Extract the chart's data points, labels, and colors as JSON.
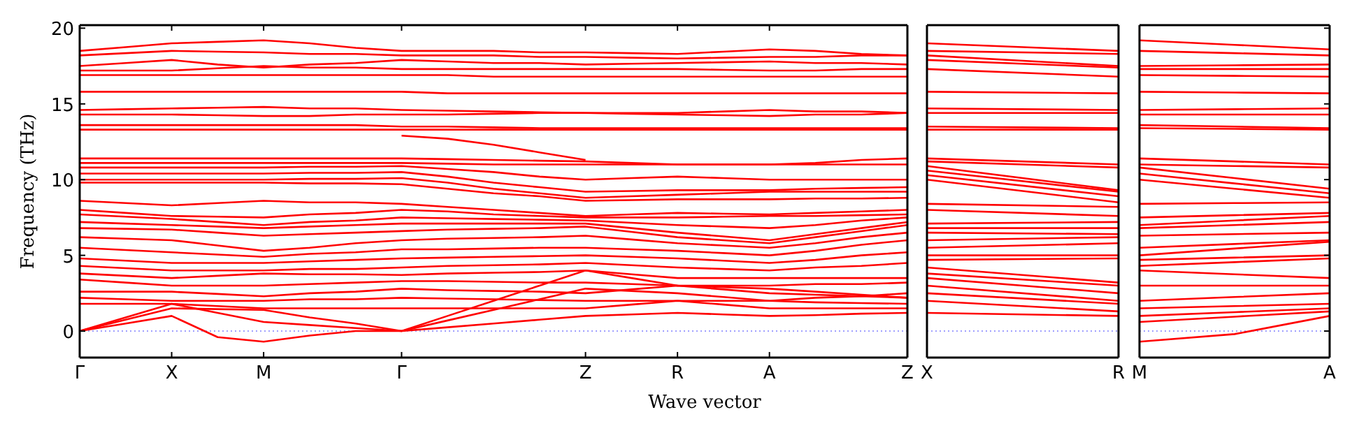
{
  "chart_data": [
    {
      "type": "line",
      "xlabel": "Wave vector",
      "ylabel": "Frequency (THz)",
      "categories": [
        "Γ",
        null,
        "X",
        null,
        "M",
        null,
        null,
        "Γ",
        null,
        null,
        null,
        "Z",
        null,
        "R",
        null,
        "A",
        null,
        null,
        "Z"
      ],
      "ylim": [
        -1.75,
        20.2
      ],
      "yticks": [
        0,
        5,
        10,
        15,
        20
      ],
      "ref_lines": [
        {
          "axis": "y",
          "value": 0,
          "color": "#8080ff",
          "line_style": "dotted"
        }
      ],
      "series": [
        {
          "color": "#ff0000",
          "values": [
            18.5,
            18.75,
            19.0,
            19.1,
            19.2,
            19.0,
            18.7,
            18.5,
            18.5,
            18.5,
            18.4,
            18.4,
            18.35,
            18.3,
            18.45,
            18.6,
            18.5,
            18.3,
            18.2
          ]
        },
        {
          "color": "#ff0000",
          "values": [
            18.2,
            18.35,
            18.5,
            18.45,
            18.4,
            18.3,
            18.3,
            18.2,
            18.2,
            18.2,
            18.1,
            18.1,
            18.05,
            18.0,
            18.05,
            18.1,
            18.1,
            18.2,
            18.2
          ]
        },
        {
          "color": "#ff0000",
          "values": [
            17.5,
            17.7,
            17.9,
            17.6,
            17.4,
            17.6,
            17.7,
            17.9,
            17.8,
            17.7,
            17.7,
            17.6,
            17.65,
            17.7,
            17.75,
            17.8,
            17.7,
            17.7,
            17.6
          ]
        },
        {
          "color": "#ff0000",
          "values": [
            17.2,
            17.2,
            17.2,
            17.35,
            17.5,
            17.4,
            17.4,
            17.3,
            17.3,
            17.3,
            17.3,
            17.3,
            17.3,
            17.3,
            17.25,
            17.2,
            17.2,
            17.3,
            17.3
          ]
        },
        {
          "color": "#ff0000",
          "values": [
            16.9,
            16.9,
            16.9,
            16.9,
            16.9,
            16.9,
            16.9,
            16.9,
            16.9,
            16.8,
            16.8,
            16.8,
            16.8,
            16.8,
            16.8,
            16.8,
            16.8,
            16.8,
            16.8
          ]
        },
        {
          "color": "#ff0000",
          "values": [
            15.8,
            15.8,
            15.8,
            15.8,
            15.8,
            15.8,
            15.8,
            15.8,
            15.7,
            15.7,
            15.7,
            15.7,
            15.7,
            15.7,
            15.7,
            15.7,
            15.7,
            15.7,
            15.7
          ]
        },
        {
          "color": "#ff0000",
          "values": [
            14.6,
            14.65,
            14.7,
            14.75,
            14.8,
            14.7,
            14.7,
            14.6,
            14.55,
            14.5,
            14.45,
            14.4,
            14.4,
            14.4,
            14.5,
            14.6,
            14.5,
            14.5,
            14.4
          ]
        },
        {
          "color": "#ff0000",
          "values": [
            14.3,
            14.3,
            14.3,
            14.25,
            14.2,
            14.2,
            14.3,
            14.3,
            14.3,
            14.35,
            14.4,
            14.4,
            14.35,
            14.3,
            14.25,
            14.2,
            14.3,
            14.3,
            14.4
          ]
        },
        {
          "color": "#ff0000",
          "values": [
            13.6,
            13.6,
            13.6,
            13.6,
            13.6,
            13.6,
            13.6,
            13.5,
            13.5,
            13.45,
            13.4,
            13.4,
            13.4,
            13.4,
            13.4,
            13.4,
            13.4,
            13.4,
            13.4
          ]
        },
        {
          "color": "#ff0000",
          "values": [
            13.3,
            13.3,
            13.3,
            13.3,
            13.3,
            13.3,
            13.3,
            13.3,
            13.3,
            13.3,
            13.3,
            13.3,
            13.3,
            13.3,
            13.3,
            13.3,
            13.3,
            13.3,
            13.3
          ]
        },
        {
          "color": "#ff0000",
          "values": [
            11.4,
            11.4,
            11.4,
            11.4,
            11.4,
            11.4,
            11.4,
            11.4,
            11.35,
            11.3,
            11.25,
            11.2,
            11.1,
            11.0,
            11.0,
            11.0,
            11.1,
            11.3,
            11.4
          ]
        },
        {
          "color": "#ff0000",
          "values": [
            11.1,
            11.1,
            11.1,
            11.1,
            11.1,
            11.1,
            11.1,
            11.1,
            11.05,
            11.0,
            11.0,
            11.0,
            11.0,
            11.0,
            11.0,
            11.0,
            11.0,
            11.0,
            11.0
          ]
        },
        {
          "color": "#ff0000",
          "values": [
            null,
            null,
            null,
            null,
            null,
            null,
            null,
            12.9,
            12.7,
            12.3,
            11.8,
            11.3,
            null,
            null,
            null,
            null,
            null,
            null,
            null
          ]
        },
        {
          "color": "#ff0000",
          "values": [
            10.8,
            10.8,
            10.8,
            10.8,
            10.8,
            10.85,
            10.85,
            10.9,
            10.7,
            10.5,
            10.2,
            10.0,
            10.1,
            10.2,
            10.1,
            10.0,
            10.0,
            10.0,
            10.0
          ]
        },
        {
          "color": "#ff0000",
          "values": [
            10.4,
            10.4,
            10.4,
            10.4,
            10.4,
            10.45,
            10.45,
            10.5,
            10.2,
            9.8,
            9.5,
            9.2,
            9.25,
            9.3,
            9.3,
            9.3,
            9.4,
            9.45,
            9.5
          ]
        },
        {
          "color": "#ff0000",
          "values": [
            10.0,
            10.0,
            10.0,
            10.0,
            10.0,
            10.05,
            10.05,
            10.1,
            9.8,
            9.4,
            9.1,
            8.8,
            8.9,
            9.0,
            9.1,
            9.2,
            9.2,
            9.2,
            9.2
          ]
        },
        {
          "color": "#ff0000",
          "values": [
            9.8,
            9.8,
            9.8,
            9.8,
            9.8,
            9.75,
            9.75,
            9.7,
            9.4,
            9.1,
            8.9,
            8.6,
            8.65,
            8.7,
            8.7,
            8.7,
            8.75,
            8.75,
            8.8
          ]
        },
        {
          "color": "#ff0000",
          "values": [
            8.6,
            8.45,
            8.3,
            8.45,
            8.6,
            8.5,
            8.5,
            8.4,
            8.2,
            8.0,
            7.8,
            7.6,
            7.7,
            7.8,
            7.75,
            7.7,
            7.8,
            7.9,
            8.0
          ]
        },
        {
          "color": "#ff0000",
          "values": [
            8.0,
            7.8,
            7.6,
            7.55,
            7.5,
            7.7,
            7.8,
            8.0,
            7.9,
            7.7,
            7.6,
            7.5,
            7.5,
            7.5,
            7.55,
            7.6,
            7.6,
            7.65,
            7.7
          ]
        },
        {
          "color": "#ff0000",
          "values": [
            7.7,
            7.55,
            7.4,
            7.2,
            7.0,
            7.2,
            7.3,
            7.5,
            7.45,
            7.4,
            7.35,
            7.3,
            7.15,
            7.0,
            6.9,
            6.8,
            7.0,
            7.3,
            7.5
          ]
        },
        {
          "color": "#ff0000",
          "values": [
            7.2,
            7.1,
            7.0,
            6.9,
            6.8,
            6.9,
            7.0,
            7.1,
            7.1,
            7.1,
            7.1,
            7.1,
            6.8,
            6.5,
            6.25,
            6.0,
            6.4,
            6.8,
            7.2
          ]
        },
        {
          "color": "#ff0000",
          "values": [
            6.8,
            6.75,
            6.7,
            6.5,
            6.3,
            6.4,
            6.5,
            6.6,
            6.7,
            6.75,
            6.8,
            6.9,
            6.55,
            6.2,
            6.0,
            5.8,
            6.2,
            6.6,
            7.0
          ]
        },
        {
          "color": "#ff0000",
          "values": [
            6.2,
            6.1,
            6.0,
            5.65,
            5.3,
            5.5,
            5.8,
            6.0,
            6.1,
            6.15,
            6.2,
            6.3,
            6.05,
            5.8,
            5.65,
            5.5,
            5.8,
            6.2,
            6.5
          ]
        },
        {
          "color": "#ff0000",
          "values": [
            5.5,
            5.35,
            5.2,
            5.05,
            4.9,
            5.1,
            5.2,
            5.4,
            5.4,
            5.45,
            5.5,
            5.5,
            5.4,
            5.3,
            5.15,
            5.0,
            5.3,
            5.7,
            6.0
          ]
        },
        {
          "color": "#ff0000",
          "values": [
            4.8,
            4.65,
            4.5,
            4.5,
            4.5,
            4.6,
            4.7,
            4.8,
            4.85,
            4.9,
            4.95,
            5.0,
            4.9,
            4.8,
            4.65,
            4.5,
            4.7,
            5.0,
            5.2
          ]
        },
        {
          "color": "#ff0000",
          "values": [
            4.3,
            4.15,
            4.0,
            4.0,
            4.0,
            4.1,
            4.1,
            4.2,
            4.3,
            4.35,
            4.4,
            4.5,
            4.35,
            4.2,
            4.1,
            4.0,
            4.2,
            4.3,
            4.5
          ]
        },
        {
          "color": "#ff0000",
          "values": [
            3.8,
            3.65,
            3.5,
            3.65,
            3.8,
            3.75,
            3.75,
            3.7,
            3.8,
            3.85,
            3.9,
            4.0,
            3.75,
            3.5,
            3.5,
            3.5,
            3.5,
            3.5,
            3.5
          ]
        },
        {
          "color": "#ff0000",
          "values": [
            3.4,
            3.2,
            3.0,
            3.0,
            3.0,
            3.1,
            3.2,
            3.3,
            3.3,
            3.25,
            3.2,
            3.2,
            3.1,
            3.0,
            3.0,
            3.0,
            3.1,
            3.1,
            3.2
          ]
        },
        {
          "color": "#ff0000",
          "values": [
            2.6,
            2.6,
            2.6,
            2.45,
            2.3,
            2.5,
            2.6,
            2.8,
            2.7,
            2.65,
            2.6,
            2.5,
            2.75,
            3.0,
            2.75,
            2.5,
            2.4,
            2.3,
            2.2
          ]
        },
        {
          "color": "#ff0000",
          "values": [
            2.2,
            2.1,
            2.0,
            2.0,
            2.0,
            2.1,
            2.1,
            2.2,
            2.15,
            2.1,
            2.05,
            2.0,
            2.0,
            2.0,
            2.0,
            2.0,
            2.2,
            2.3,
            2.5
          ]
        },
        {
          "color": "#ff0000",
          "values": [
            1.8,
            1.8,
            1.8,
            1.65,
            1.5,
            1.5,
            1.5,
            1.5,
            1.5,
            1.5,
            1.5,
            1.5,
            1.75,
            2.0,
            1.75,
            1.5,
            1.5,
            1.5,
            1.5
          ]
        },
        {
          "color": "#ff0000",
          "values": [
            0,
            0.9,
            1.8,
            1.2,
            0.6,
            0.4,
            0.2,
            0,
            0.7,
            1.4,
            2.1,
            2.8,
            2.65,
            2.5,
            2.25,
            2.0,
            1.9,
            1.85,
            1.8
          ]
        },
        {
          "color": "#ff0000",
          "values": [
            0,
            0.75,
            1.5,
            1.45,
            1.4,
            0.9,
            0.5,
            0,
            1.0,
            2.0,
            3.0,
            4.0,
            3.5,
            3.0,
            2.9,
            2.8,
            2.6,
            2.4,
            2.2
          ]
        },
        {
          "color": "#ff0000",
          "values": [
            0,
            0.5,
            1.0,
            -0.4,
            -0.7,
            -0.3,
            0.0,
            0,
            0.25,
            0.5,
            0.75,
            1.0,
            1.1,
            1.2,
            1.1,
            1.0,
            1.05,
            1.15,
            1.2
          ]
        }
      ]
    },
    {
      "type": "line",
      "categories": [
        "X",
        "R"
      ],
      "ylim": [
        -1.75,
        20.2
      ],
      "tick_labels": "x",
      "ref_lines": [
        {
          "axis": "y",
          "value": 0,
          "color": "#8080ff",
          "line_style": "dotted"
        }
      ],
      "series": [
        {
          "color": "#ff0000",
          "values": [
            19.0,
            18.5
          ]
        },
        {
          "color": "#ff0000",
          "values": [
            18.5,
            18.3
          ]
        },
        {
          "color": "#ff0000",
          "values": [
            18.2,
            17.5
          ]
        },
        {
          "color": "#ff0000",
          "values": [
            17.9,
            17.4
          ]
        },
        {
          "color": "#ff0000",
          "values": [
            17.3,
            16.8
          ]
        },
        {
          "color": "#ff0000",
          "values": [
            15.8,
            15.7
          ]
        },
        {
          "color": "#ff0000",
          "values": [
            14.7,
            14.6
          ]
        },
        {
          "color": "#ff0000",
          "values": [
            14.4,
            14.4
          ]
        },
        {
          "color": "#ff0000",
          "values": [
            13.5,
            13.4
          ]
        },
        {
          "color": "#ff0000",
          "values": [
            13.3,
            13.3
          ]
        },
        {
          "color": "#ff0000",
          "values": [
            11.4,
            11.0
          ]
        },
        {
          "color": "#ff0000",
          "values": [
            11.2,
            10.8
          ]
        },
        {
          "color": "#ff0000",
          "values": [
            10.9,
            9.3
          ]
        },
        {
          "color": "#ff0000",
          "values": [
            10.6,
            9.2
          ]
        },
        {
          "color": "#ff0000",
          "values": [
            10.3,
            8.9
          ]
        },
        {
          "color": "#ff0000",
          "values": [
            10.0,
            8.5
          ]
        },
        {
          "color": "#ff0000",
          "values": [
            8.4,
            8.2
          ]
        },
        {
          "color": "#ff0000",
          "values": [
            8.0,
            7.6
          ]
        },
        {
          "color": "#ff0000",
          "values": [
            7.1,
            7.2
          ]
        },
        {
          "color": "#ff0000",
          "values": [
            6.8,
            6.8
          ]
        },
        {
          "color": "#ff0000",
          "values": [
            6.5,
            6.4
          ]
        },
        {
          "color": "#ff0000",
          "values": [
            6.0,
            6.2
          ]
        },
        {
          "color": "#ff0000",
          "values": [
            5.5,
            5.8
          ]
        },
        {
          "color": "#ff0000",
          "values": [
            5.0,
            5.0
          ]
        },
        {
          "color": "#ff0000",
          "values": [
            4.7,
            4.8
          ]
        },
        {
          "color": "#ff0000",
          "values": [
            4.2,
            3.2
          ]
        },
        {
          "color": "#ff0000",
          "values": [
            3.8,
            3.0
          ]
        },
        {
          "color": "#ff0000",
          "values": [
            3.5,
            2.5
          ]
        },
        {
          "color": "#ff0000",
          "values": [
            3.0,
            2.0
          ]
        },
        {
          "color": "#ff0000",
          "values": [
            2.5,
            1.8
          ]
        },
        {
          "color": "#ff0000",
          "values": [
            2.0,
            1.3
          ]
        },
        {
          "color": "#ff0000",
          "values": [
            1.2,
            1.0
          ]
        }
      ]
    },
    {
      "type": "line",
      "categories": [
        "M",
        null,
        "A"
      ],
      "ylim": [
        -1.75,
        20.2
      ],
      "yticks": [
        0,
        5,
        10,
        15,
        20
      ],
      "tick_labels": "x",
      "ref_lines": [
        {
          "axis": "y",
          "value": 0,
          "color": "#8080ff",
          "line_style": "dotted"
        }
      ],
      "series": [
        {
          "color": "#ff0000",
          "values": [
            19.2,
            18.9,
            18.6
          ]
        },
        {
          "color": "#ff0000",
          "values": [
            18.5,
            18.35,
            18.2
          ]
        },
        {
          "color": "#ff0000",
          "values": [
            17.5,
            17.55,
            17.6
          ]
        },
        {
          "color": "#ff0000",
          "values": [
            17.3,
            17.3,
            17.3
          ]
        },
        {
          "color": "#ff0000",
          "values": [
            16.9,
            16.85,
            16.8
          ]
        },
        {
          "color": "#ff0000",
          "values": [
            15.8,
            15.75,
            15.7
          ]
        },
        {
          "color": "#ff0000",
          "values": [
            14.6,
            14.65,
            14.7
          ]
        },
        {
          "color": "#ff0000",
          "values": [
            14.3,
            14.3,
            14.3
          ]
        },
        {
          "color": "#ff0000",
          "values": [
            13.6,
            13.5,
            13.4
          ]
        },
        {
          "color": "#ff0000",
          "values": [
            13.4,
            13.35,
            13.3
          ]
        },
        {
          "color": "#ff0000",
          "values": [
            11.4,
            11.2,
            11.0
          ]
        },
        {
          "color": "#ff0000",
          "values": [
            11.0,
            10.9,
            10.8
          ]
        },
        {
          "color": "#ff0000",
          "values": [
            10.8,
            10.1,
            9.4
          ]
        },
        {
          "color": "#ff0000",
          "values": [
            10.4,
            9.75,
            9.1
          ]
        },
        {
          "color": "#ff0000",
          "values": [
            10.0,
            9.4,
            8.8
          ]
        },
        {
          "color": "#ff0000",
          "values": [
            8.4,
            8.45,
            8.5
          ]
        },
        {
          "color": "#ff0000",
          "values": [
            7.5,
            7.65,
            7.8
          ]
        },
        {
          "color": "#ff0000",
          "values": [
            7.0,
            7.3,
            7.6
          ]
        },
        {
          "color": "#ff0000",
          "values": [
            6.8,
            7.0,
            7.2
          ]
        },
        {
          "color": "#ff0000",
          "values": [
            6.3,
            6.4,
            6.5
          ]
        },
        {
          "color": "#ff0000",
          "values": [
            5.5,
            5.75,
            6.0
          ]
        },
        {
          "color": "#ff0000",
          "values": [
            5.0,
            5.45,
            5.9
          ]
        },
        {
          "color": "#ff0000",
          "values": [
            4.7,
            4.85,
            5.0
          ]
        },
        {
          "color": "#ff0000",
          "values": [
            4.3,
            4.55,
            4.8
          ]
        },
        {
          "color": "#ff0000",
          "values": [
            4.0,
            3.75,
            3.5
          ]
        },
        {
          "color": "#ff0000",
          "values": [
            3.0,
            3.0,
            3.0
          ]
        },
        {
          "color": "#ff0000",
          "values": [
            2.0,
            2.25,
            2.5
          ]
        },
        {
          "color": "#ff0000",
          "values": [
            1.5,
            1.65,
            1.8
          ]
        },
        {
          "color": "#ff0000",
          "values": [
            1.0,
            1.25,
            1.5
          ]
        },
        {
          "color": "#ff0000",
          "values": [
            0.6,
            0.95,
            1.3
          ]
        },
        {
          "color": "#ff0000",
          "values": [
            -0.7,
            -0.2,
            1.0
          ]
        }
      ]
    }
  ]
}
